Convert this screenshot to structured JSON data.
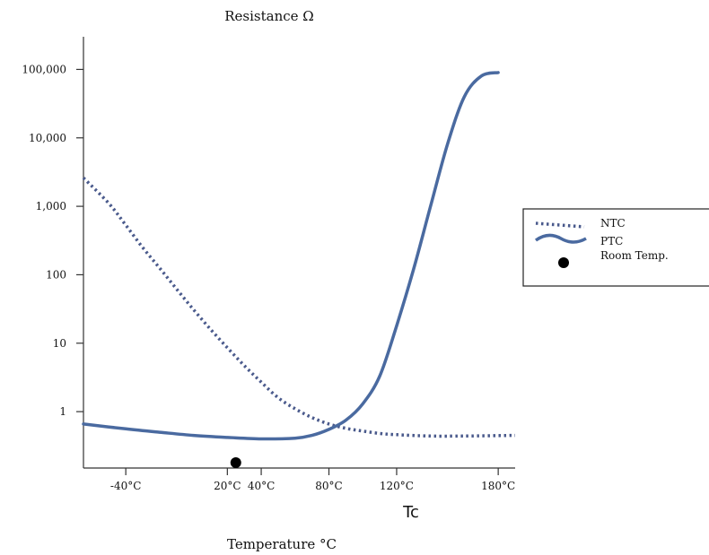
{
  "chart_data": {
    "type": "line",
    "ylabel": "Resistance  Ω",
    "xlabel": "Temperature  °C",
    "y_scale": "log",
    "ylim": [
      0.15,
      300000
    ],
    "xlim": [
      -65,
      190
    ],
    "y_ticks": [
      {
        "value": 1,
        "label": "1"
      },
      {
        "value": 10,
        "label": "10"
      },
      {
        "value": 100,
        "label": "100"
      },
      {
        "value": 1000,
        "label": "1,000"
      },
      {
        "value": 10000,
        "label": "10,000"
      },
      {
        "value": 100000,
        "label": "100,000"
      }
    ],
    "x_ticks": [
      {
        "value": -40,
        "label": "-40°C"
      },
      {
        "value": 20,
        "label": "20°C"
      },
      {
        "value": 40,
        "label": "40°C"
      },
      {
        "value": 80,
        "label": "80°C"
      },
      {
        "value": 120,
        "label": "120°C"
      },
      {
        "value": 180,
        "label": "180°C"
      }
    ],
    "annotation": "Tc",
    "series": [
      {
        "name": "NTC",
        "style": "dotted",
        "color": "#4a5a8c",
        "x": [
          -65,
          -50,
          -40,
          -30,
          -20,
          -10,
          0,
          10,
          20,
          30,
          40,
          50,
          60,
          70,
          80,
          90,
          100,
          110,
          120,
          140,
          160,
          190
        ],
        "y": [
          2600,
          1100,
          530,
          250,
          125,
          62,
          31,
          16,
          8.6,
          4.7,
          2.7,
          1.6,
          1.1,
          0.82,
          0.66,
          0.57,
          0.52,
          0.48,
          0.46,
          0.44,
          0.44,
          0.45
        ]
      },
      {
        "name": "PTC",
        "style": "solid",
        "color": "#4a6aa0",
        "x": [
          -65,
          -40,
          -20,
          0,
          20,
          40,
          60,
          70,
          80,
          90,
          100,
          110,
          120,
          130,
          140,
          150,
          160,
          170,
          180
        ],
        "y": [
          0.66,
          0.56,
          0.5,
          0.45,
          0.42,
          0.4,
          0.41,
          0.45,
          0.55,
          0.75,
          1.3,
          3.3,
          18,
          120,
          1000,
          8000,
          40000,
          80000,
          90000
        ]
      },
      {
        "name": "Room Temp.",
        "style": "marker",
        "color": "#000000",
        "x": [
          25
        ],
        "y": [
          0.18
        ]
      }
    ],
    "legend": {
      "placement": "right"
    }
  }
}
